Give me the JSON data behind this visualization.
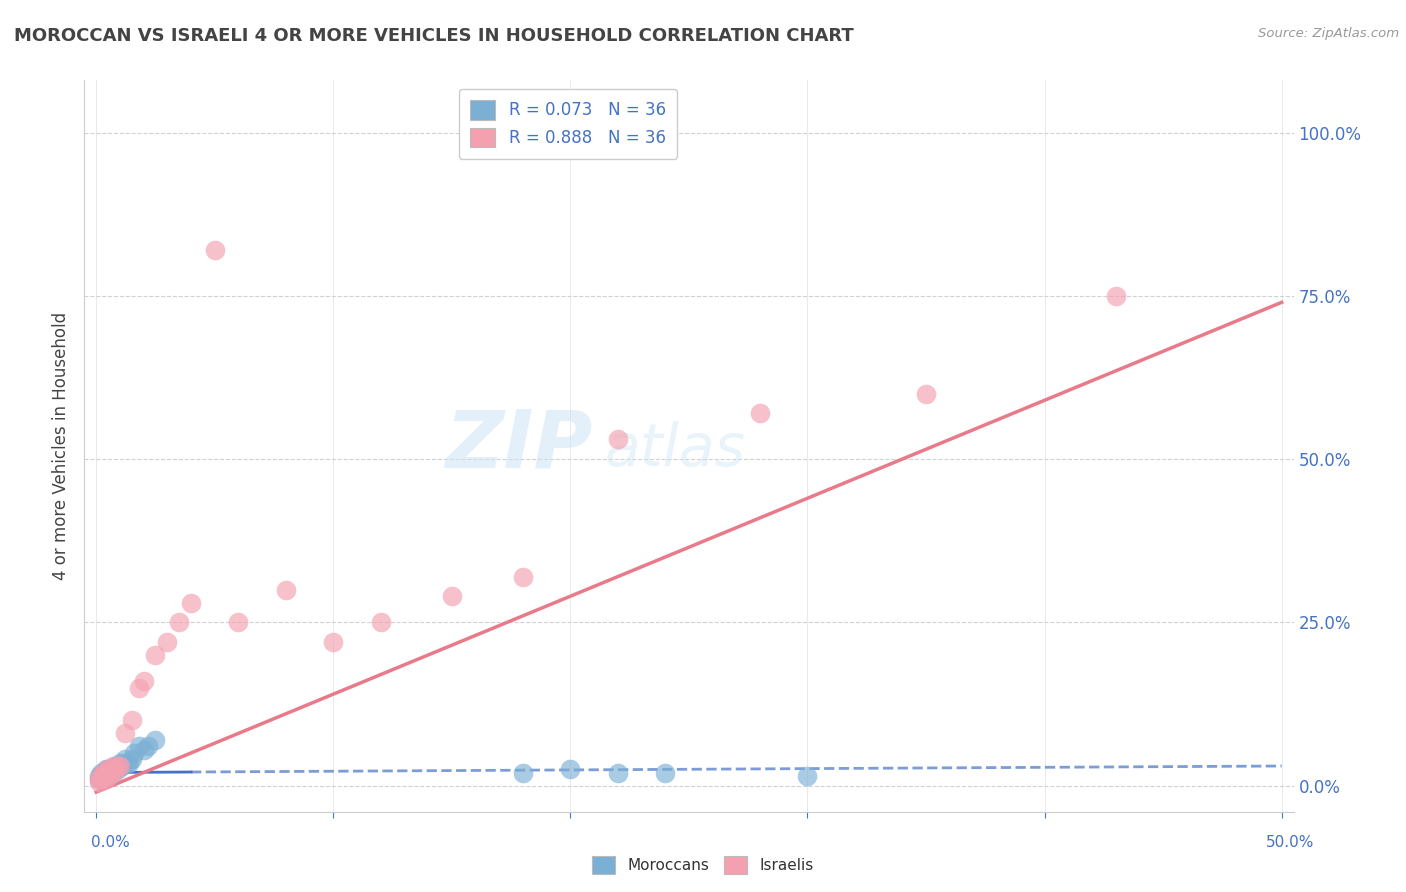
{
  "title": "MOROCCAN VS ISRAELI 4 OR MORE VEHICLES IN HOUSEHOLD CORRELATION CHART",
  "source": "Source: ZipAtlas.com",
  "ylabel": "4 or more Vehicles in Household",
  "ytick_labels": [
    "0.0%",
    "25.0%",
    "50.0%",
    "75.0%",
    "100.0%"
  ],
  "ytick_values": [
    0.0,
    0.25,
    0.5,
    0.75,
    1.0
  ],
  "xlim": [
    -0.005,
    0.505
  ],
  "ylim": [
    -0.04,
    1.08
  ],
  "legend_moroccan": "R = 0.073   N = 36",
  "legend_israeli": "R = 0.888   N = 36",
  "moroccan_color": "#7bafd4",
  "israeli_color": "#f4a0b0",
  "moroccan_line_color": "#4472c4",
  "israeli_line_color": "#e87a8a",
  "watermark_zip": "ZIP",
  "watermark_atlas": "atlas",
  "moroccan_scatter_x": [
    0.001,
    0.001,
    0.002,
    0.002,
    0.003,
    0.003,
    0.004,
    0.004,
    0.005,
    0.005,
    0.005,
    0.006,
    0.006,
    0.007,
    0.007,
    0.008,
    0.008,
    0.009,
    0.009,
    0.01,
    0.01,
    0.011,
    0.012,
    0.013,
    0.014,
    0.015,
    0.016,
    0.018,
    0.02,
    0.022,
    0.025,
    0.18,
    0.2,
    0.22,
    0.24,
    0.3
  ],
  "moroccan_scatter_y": [
    0.01,
    0.015,
    0.01,
    0.02,
    0.015,
    0.02,
    0.015,
    0.025,
    0.015,
    0.02,
    0.025,
    0.02,
    0.025,
    0.02,
    0.025,
    0.025,
    0.03,
    0.025,
    0.03,
    0.03,
    0.035,
    0.03,
    0.04,
    0.035,
    0.035,
    0.04,
    0.05,
    0.06,
    0.055,
    0.06,
    0.07,
    0.02,
    0.025,
    0.02,
    0.02,
    0.015
  ],
  "israeli_scatter_x": [
    0.001,
    0.001,
    0.002,
    0.002,
    0.003,
    0.003,
    0.004,
    0.004,
    0.005,
    0.005,
    0.006,
    0.006,
    0.007,
    0.007,
    0.008,
    0.009,
    0.01,
    0.012,
    0.015,
    0.018,
    0.02,
    0.025,
    0.03,
    0.035,
    0.04,
    0.05,
    0.06,
    0.08,
    0.1,
    0.12,
    0.15,
    0.18,
    0.22,
    0.28,
    0.35,
    0.43
  ],
  "israeli_scatter_y": [
    0.005,
    0.01,
    0.01,
    0.015,
    0.015,
    0.02,
    0.01,
    0.02,
    0.015,
    0.025,
    0.02,
    0.025,
    0.02,
    0.03,
    0.025,
    0.03,
    0.03,
    0.08,
    0.1,
    0.15,
    0.16,
    0.2,
    0.22,
    0.25,
    0.28,
    0.82,
    0.25,
    0.3,
    0.22,
    0.25,
    0.29,
    0.32,
    0.53,
    0.57,
    0.6,
    0.75
  ],
  "moroccan_line_slope": 0.02,
  "moroccan_line_intercept": 0.02,
  "israeli_line_slope": 1.5,
  "israeli_line_intercept": -0.01,
  "background_color": "#ffffff",
  "grid_color": "#cccccc",
  "title_color": "#444444",
  "axis_color": "#4472c4"
}
